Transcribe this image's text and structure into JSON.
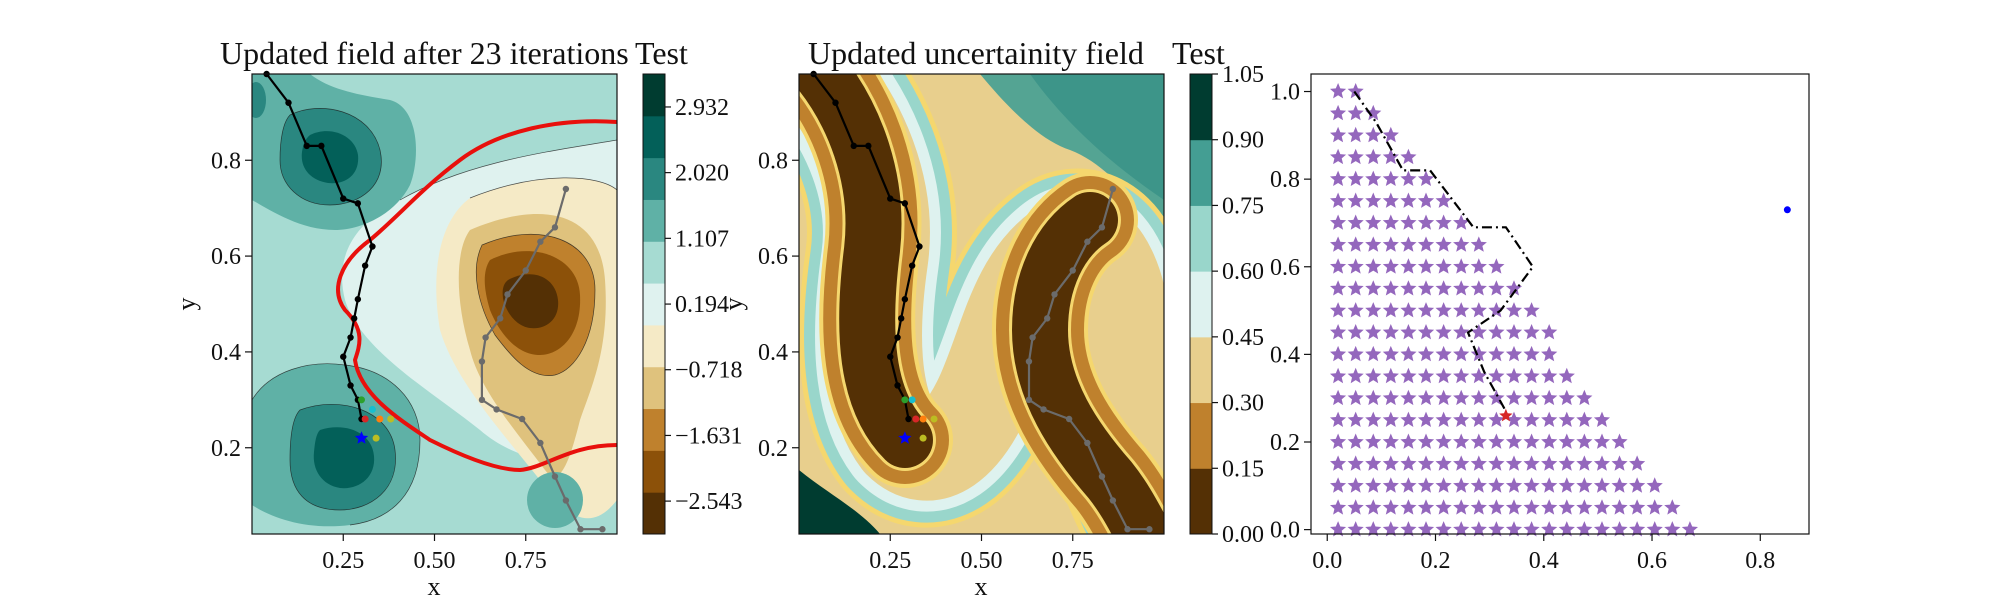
{
  "chart_data": [
    {
      "type": "contour",
      "title": "Updated field after 23 iterations",
      "xlabel": "x",
      "ylabel": "y",
      "xlim": [
        0.0,
        1.0
      ],
      "ylim": [
        0.02,
        0.98
      ],
      "xticks": [
        "0.25",
        "0.50",
        "0.75"
      ],
      "yticks": [
        "0.2",
        "0.4",
        "0.6",
        "0.8"
      ],
      "colorbar": {
        "title": "Test",
        "range": [
          -3.0,
          3.39
        ],
        "ticks": [
          "2.932",
          "2.020",
          "1.107",
          "0.194",
          "−0.718",
          "−1.631",
          "−2.543"
        ],
        "tick_values": [
          2.932,
          2.02,
          1.107,
          0.194,
          -0.718,
          -1.631,
          -2.543
        ],
        "colors": [
          "#543005",
          "#8c5109",
          "#bf812d",
          "#dfc27d",
          "#f5eac6",
          "#dff2ef",
          "#a6dbd2",
          "#5fb1a6",
          "#2a8780",
          "#036059",
          "#003c30"
        ]
      },
      "path_series": [
        {
          "name": "path",
          "color": "#000000",
          "x": [
            0.04,
            0.1,
            0.15,
            0.19,
            0.25,
            0.29,
            0.33,
            0.31,
            0.29,
            0.28,
            0.27,
            0.25,
            0.27,
            0.29,
            0.3
          ],
          "y": [
            0.98,
            0.92,
            0.83,
            0.83,
            0.72,
            0.71,
            0.62,
            0.58,
            0.51,
            0.47,
            0.43,
            0.39,
            0.33,
            0.3,
            0.26
          ]
        },
        {
          "name": "path2",
          "color": "#6b6b6b",
          "x": [
            0.86,
            0.83,
            0.79,
            0.75,
            0.7,
            0.68,
            0.64,
            0.63,
            0.63,
            0.67,
            0.74,
            0.79,
            0.83,
            0.86,
            0.9,
            0.96
          ],
          "y": [
            0.74,
            0.66,
            0.63,
            0.57,
            0.52,
            0.47,
            0.43,
            0.38,
            0.3,
            0.28,
            0.26,
            0.21,
            0.14,
            0.09,
            0.03,
            0.03
          ]
        }
      ],
      "markers": [
        {
          "x": 0.3,
          "y": 0.3,
          "color": "#2ca02c"
        },
        {
          "x": 0.33,
          "y": 0.28,
          "color": "#17becf"
        },
        {
          "x": 0.31,
          "y": 0.26,
          "color": "#d62728"
        },
        {
          "x": 0.35,
          "y": 0.26,
          "color": "#ff7f0e"
        },
        {
          "x": 0.38,
          "y": 0.26,
          "color": "#bcbd22"
        },
        {
          "x": 0.34,
          "y": 0.22,
          "color": "#bcbd22"
        },
        {
          "x": 0.3,
          "y": 0.22,
          "color": "#0000ff",
          "shape": "star"
        }
      ]
    },
    {
      "type": "contour",
      "title": "Updated uncertainity field",
      "xlabel": "x",
      "ylabel": "y",
      "xlim": [
        0.0,
        1.0
      ],
      "ylim": [
        0.02,
        0.98
      ],
      "xticks": [
        "0.25",
        "0.50",
        "0.75"
      ],
      "yticks": [
        "0.2",
        "0.4",
        "0.6",
        "0.8"
      ],
      "colorbar": {
        "title": "Test",
        "range": [
          0.0,
          1.05
        ],
        "ticks": [
          "1.05",
          "0.90",
          "0.75",
          "0.60",
          "0.45",
          "0.30",
          "0.15",
          "0.00"
        ],
        "tick_values": [
          1.05,
          0.9,
          0.75,
          0.6,
          0.45,
          0.3,
          0.15,
          0.0
        ],
        "colors": [
          "#543005",
          "#bf812d",
          "#e8cf8d",
          "#def2ef",
          "#99d6cb",
          "#449e93",
          "#003c30"
        ]
      },
      "path_series": [
        {
          "name": "path",
          "color": "#000000",
          "x": [
            0.04,
            0.1,
            0.15,
            0.19,
            0.25,
            0.29,
            0.33,
            0.31,
            0.29,
            0.28,
            0.27,
            0.25,
            0.27,
            0.29,
            0.3
          ],
          "y": [
            0.98,
            0.92,
            0.83,
            0.83,
            0.72,
            0.71,
            0.62,
            0.58,
            0.51,
            0.47,
            0.43,
            0.39,
            0.33,
            0.3,
            0.26
          ]
        },
        {
          "name": "path2",
          "color": "#6b6b6b",
          "x": [
            0.86,
            0.83,
            0.79,
            0.75,
            0.7,
            0.68,
            0.64,
            0.63,
            0.63,
            0.67,
            0.74,
            0.79,
            0.83,
            0.86,
            0.9,
            0.96
          ],
          "y": [
            0.74,
            0.66,
            0.63,
            0.57,
            0.52,
            0.47,
            0.43,
            0.38,
            0.3,
            0.28,
            0.26,
            0.21,
            0.14,
            0.09,
            0.03,
            0.03
          ]
        }
      ],
      "markers": [
        {
          "x": 0.29,
          "y": 0.3,
          "color": "#2ca02c"
        },
        {
          "x": 0.31,
          "y": 0.3,
          "color": "#17becf"
        },
        {
          "x": 0.32,
          "y": 0.26,
          "color": "#d62728"
        },
        {
          "x": 0.34,
          "y": 0.26,
          "color": "#ff7f0e"
        },
        {
          "x": 0.37,
          "y": 0.26,
          "color": "#bcbd22"
        },
        {
          "x": 0.34,
          "y": 0.22,
          "color": "#bcbd22"
        },
        {
          "x": 0.29,
          "y": 0.22,
          "color": "#0000ff",
          "shape": "star"
        }
      ]
    },
    {
      "type": "scatter",
      "title": "",
      "xlabel": "",
      "ylabel": "",
      "xlim": [
        -0.03,
        0.89
      ],
      "ylim": [
        -0.01,
        1.04
      ],
      "xticks": [
        "0.0",
        "0.2",
        "0.4",
        "0.6",
        "0.8"
      ],
      "xtick_values": [
        0.0,
        0.2,
        0.4,
        0.6,
        0.8
      ],
      "yticks": [
        "0.0",
        "0.2",
        "0.4",
        "0.6",
        "0.8",
        "1.0"
      ],
      "ytick_values": [
        0.0,
        0.2,
        0.4,
        0.6,
        0.8,
        1.0
      ],
      "grid": {
        "marker": "star",
        "color": "#9467bd",
        "x_start": 0.02,
        "x_step": 0.0325,
        "y_step": 0.05,
        "y_max": 1.0,
        "boundary": "x <= 0.68 - 0.60 * y"
      },
      "path_series": [
        {
          "name": "path",
          "color": "#000000",
          "style": "dashdot",
          "x": [
            0.05,
            0.09,
            0.14,
            0.19,
            0.27,
            0.33,
            0.38,
            0.32,
            0.26,
            0.29,
            0.33
          ],
          "y": [
            1.0,
            0.93,
            0.82,
            0.82,
            0.69,
            0.69,
            0.6,
            0.5,
            0.45,
            0.36,
            0.27
          ]
        }
      ],
      "markers": [
        {
          "x": 0.33,
          "y": 0.26,
          "color": "#d62728",
          "shape": "star"
        },
        {
          "x": 0.85,
          "y": 0.73,
          "color": "#0000ff"
        }
      ]
    }
  ]
}
